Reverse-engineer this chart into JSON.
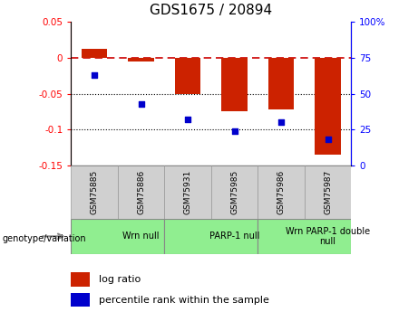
{
  "title": "GDS1675 / 20894",
  "samples": [
    "GSM75885",
    "GSM75886",
    "GSM75931",
    "GSM75985",
    "GSM75986",
    "GSM75987"
  ],
  "log_ratios": [
    0.012,
    -0.005,
    -0.05,
    -0.075,
    -0.072,
    -0.135
  ],
  "percentile_ranks": [
    63,
    43,
    32,
    24,
    30,
    18
  ],
  "groups": [
    {
      "label": "Wrn null",
      "start": 0,
      "end": 2,
      "color": "#90EE90"
    },
    {
      "label": "PARP-1 null",
      "start": 2,
      "end": 4,
      "color": "#90EE90"
    },
    {
      "label": "Wrn PARP-1 double\nnull",
      "start": 4,
      "end": 6,
      "color": "#90EE90"
    }
  ],
  "bar_color": "#CC2200",
  "dot_color": "#0000CC",
  "zero_line_color": "#CC0000",
  "ylim_left": [
    -0.15,
    0.05
  ],
  "ylim_right": [
    0,
    100
  ],
  "legend_log_ratio": "log ratio",
  "legend_percentile": "percentile rank within the sample",
  "left_yticks": [
    -0.15,
    -0.1,
    -0.05,
    0,
    0.05
  ],
  "left_yticklabels": [
    "-0.15",
    "-0.1",
    "-0.05",
    "0",
    "0.05"
  ],
  "right_yticks": [
    0,
    25,
    50,
    75,
    100
  ],
  "right_yticklabels": [
    "0",
    "25",
    "50",
    "75",
    "100%"
  ]
}
